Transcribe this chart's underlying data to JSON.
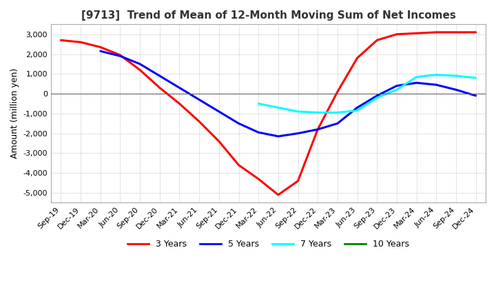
{
  "title": "[9713]  Trend of Mean of 12-Month Moving Sum of Net Incomes",
  "ylabel": "Amount (million yen)",
  "ylim": [
    -5500,
    3500
  ],
  "yticks": [
    3000,
    2000,
    1000,
    0,
    -1000,
    -2000,
    -3000,
    -4000,
    -5000
  ],
  "background_color": "#FFFFFF",
  "grid_color": "#AAAAAA",
  "series": {
    "3 Years": {
      "color": "#FF0000",
      "x": [
        0,
        1,
        2,
        3,
        4,
        5,
        6,
        7,
        8,
        9,
        10,
        11,
        12,
        13,
        14,
        15,
        16,
        17,
        18,
        19,
        20,
        21
      ],
      "y": [
        2700,
        2600,
        2350,
        1950,
        1200,
        300,
        -500,
        -1400,
        -2400,
        -3600,
        -4300,
        -5100,
        -4400,
        -1800,
        100,
        1800,
        2700,
        3000,
        3050,
        3100,
        3100,
        3100
      ]
    },
    "5 Years": {
      "color": "#0000FF",
      "x": [
        2,
        3,
        4,
        5,
        6,
        7,
        8,
        9,
        10,
        11,
        12,
        13,
        14,
        15,
        16,
        17,
        18,
        19,
        20,
        21
      ],
      "y": [
        2150,
        1900,
        1500,
        900,
        300,
        -300,
        -900,
        -1500,
        -1950,
        -2150,
        -2000,
        -1800,
        -1500,
        -700,
        -100,
        400,
        550,
        450,
        200,
        -100
      ]
    },
    "7 Years": {
      "color": "#00FFFF",
      "x": [
        10,
        11,
        12,
        13,
        14,
        15,
        16,
        17,
        18,
        19,
        20,
        21
      ],
      "y": [
        -500,
        -700,
        -900,
        -950,
        -950,
        -850,
        -200,
        200,
        850,
        950,
        900,
        800
      ]
    },
    "10 Years": {
      "color": "#008000",
      "x": [],
      "y": []
    }
  },
  "xtick_labels": [
    "Sep-19",
    "Dec-19",
    "Mar-20",
    "Jun-20",
    "Sep-20",
    "Dec-20",
    "Mar-21",
    "Jun-21",
    "Sep-21",
    "Dec-21",
    "Mar-22",
    "Jun-22",
    "Sep-22",
    "Dec-22",
    "Mar-23",
    "Jun-23",
    "Sep-23",
    "Dec-23",
    "Mar-24",
    "Jun-24",
    "Sep-24",
    "Dec-24"
  ],
  "legend_labels": [
    "3 Years",
    "5 Years",
    "7 Years",
    "10 Years"
  ],
  "legend_colors": [
    "#FF0000",
    "#0000FF",
    "#00FFFF",
    "#008000"
  ]
}
